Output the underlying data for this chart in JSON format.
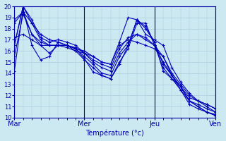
{
  "title": "Température (°c)",
  "xlabels": [
    "Mar",
    "Mer",
    "Jeu",
    "Ven"
  ],
  "xtick_positions": [
    0,
    8,
    16,
    23
  ],
  "ylim": [
    10,
    20
  ],
  "yticks": [
    10,
    11,
    12,
    13,
    14,
    15,
    16,
    17,
    18,
    19,
    20
  ],
  "bg_color": "#cce8f0",
  "grid_color": "#aaccdd",
  "line_color": "#0000bb",
  "series": [
    [
      14.2,
      19.8,
      16.5,
      15.2,
      15.5,
      16.8,
      16.5,
      16.2,
      15.3,
      14.1,
      13.8,
      13.5,
      14.8,
      16.5,
      18.8,
      18.2,
      16.8,
      14.2,
      13.5,
      12.8,
      11.5,
      11.0,
      10.5,
      10.3
    ],
    [
      15.5,
      19.3,
      17.5,
      16.5,
      15.8,
      16.5,
      16.5,
      16.0,
      15.2,
      14.5,
      13.8,
      13.5,
      15.0,
      16.2,
      18.5,
      18.5,
      16.5,
      14.5,
      13.5,
      12.5,
      11.2,
      10.8,
      10.5,
      10.2
    ],
    [
      16.5,
      20.0,
      18.5,
      17.0,
      16.5,
      16.5,
      16.5,
      16.2,
      15.5,
      14.8,
      14.0,
      13.8,
      15.5,
      16.5,
      18.8,
      18.0,
      16.8,
      14.8,
      13.8,
      12.8,
      11.5,
      11.2,
      10.8,
      10.5
    ],
    [
      16.5,
      20.0,
      18.8,
      17.2,
      16.8,
      17.0,
      16.8,
      16.5,
      15.8,
      15.0,
      14.5,
      14.2,
      15.8,
      16.8,
      17.5,
      17.2,
      16.5,
      15.0,
      13.8,
      12.8,
      11.8,
      11.5,
      11.2,
      10.8
    ],
    [
      18.5,
      19.5,
      17.5,
      16.8,
      16.5,
      16.5,
      16.5,
      16.3,
      15.8,
      15.2,
      14.8,
      14.5,
      16.2,
      17.2,
      17.5,
      17.0,
      16.5,
      15.5,
      14.0,
      13.0,
      12.0,
      11.5,
      11.0,
      10.5
    ],
    [
      17.2,
      17.5,
      17.0,
      16.5,
      16.5,
      16.5,
      16.3,
      16.0,
      15.8,
      15.5,
      15.0,
      14.8,
      16.8,
      19.0,
      18.8,
      17.5,
      17.0,
      16.5,
      14.5,
      13.2,
      12.2,
      11.5,
      11.2,
      10.8
    ],
    [
      18.8,
      19.5,
      18.5,
      17.5,
      17.0,
      16.8,
      16.5,
      16.2,
      16.0,
      15.5,
      15.0,
      14.8,
      16.5,
      17.0,
      16.8,
      16.5,
      16.2,
      15.5,
      13.8,
      12.5,
      11.5,
      11.0,
      10.5,
      10.2
    ]
  ]
}
